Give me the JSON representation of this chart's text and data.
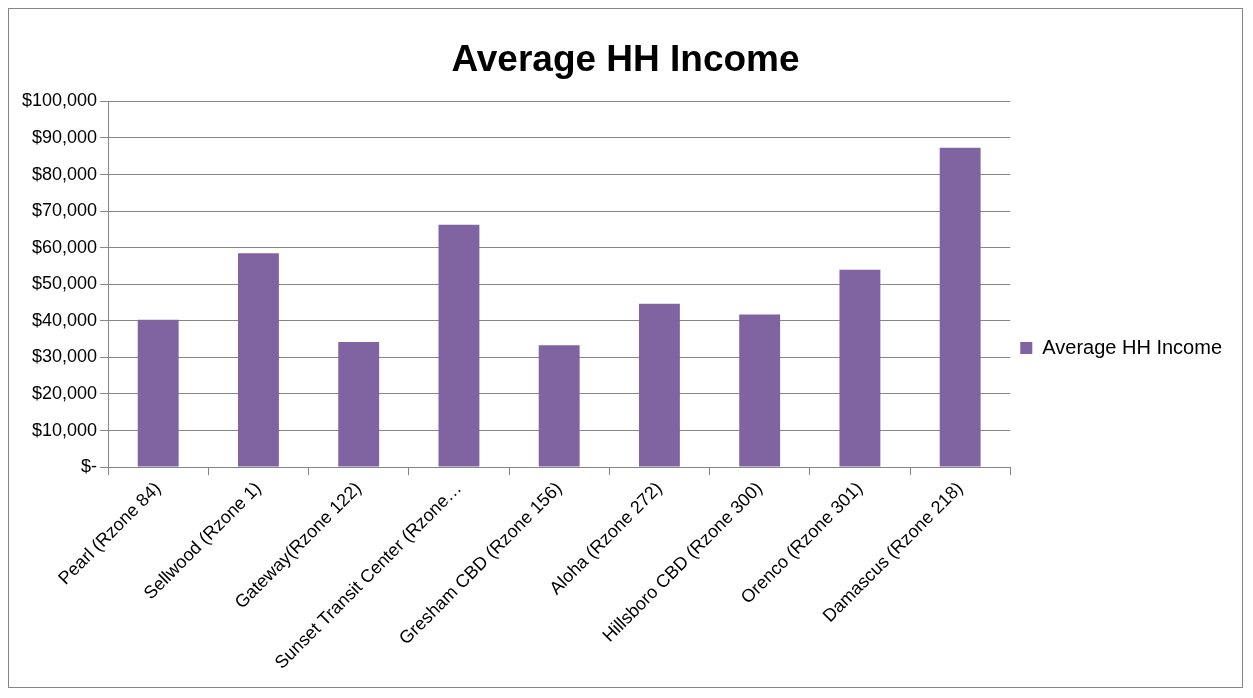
{
  "chart_data": {
    "type": "bar",
    "title": "Average HH Income",
    "categories": [
      "Pearl (Rzone 84)",
      "Sellwood (Rzone 1)",
      "Gateway(Rzone 122)",
      "Sunset Transit Center (Rzone…",
      "Gresham CBD (Rzone 156)",
      "Aloha (Rzone 272)",
      "Hillsboro CBD (Rzone 300)",
      "Orenco (Rzone 301)",
      "Damascus (Rzone 218)"
    ],
    "series": [
      {
        "name": "Average HH Income",
        "color": "#8064a2",
        "values": [
          40300,
          58500,
          34200,
          66300,
          33300,
          44700,
          41700,
          54000,
          87300
        ]
      }
    ],
    "ylim": [
      0,
      100000
    ],
    "yticks": [
      {
        "value": 0,
        "label": "$-"
      },
      {
        "value": 10000,
        "label": "$10,000"
      },
      {
        "value": 20000,
        "label": "$20,000"
      },
      {
        "value": 30000,
        "label": "$30,000"
      },
      {
        "value": 40000,
        "label": "$40,000"
      },
      {
        "value": 50000,
        "label": "$50,000"
      },
      {
        "value": 60000,
        "label": "$60,000"
      },
      {
        "value": 70000,
        "label": "$70,000"
      },
      {
        "value": 80000,
        "label": "$80,000"
      },
      {
        "value": 90000,
        "label": "$90,000"
      },
      {
        "value": 100000,
        "label": "$100,000"
      }
    ],
    "grid": "y",
    "legend": "right"
  }
}
